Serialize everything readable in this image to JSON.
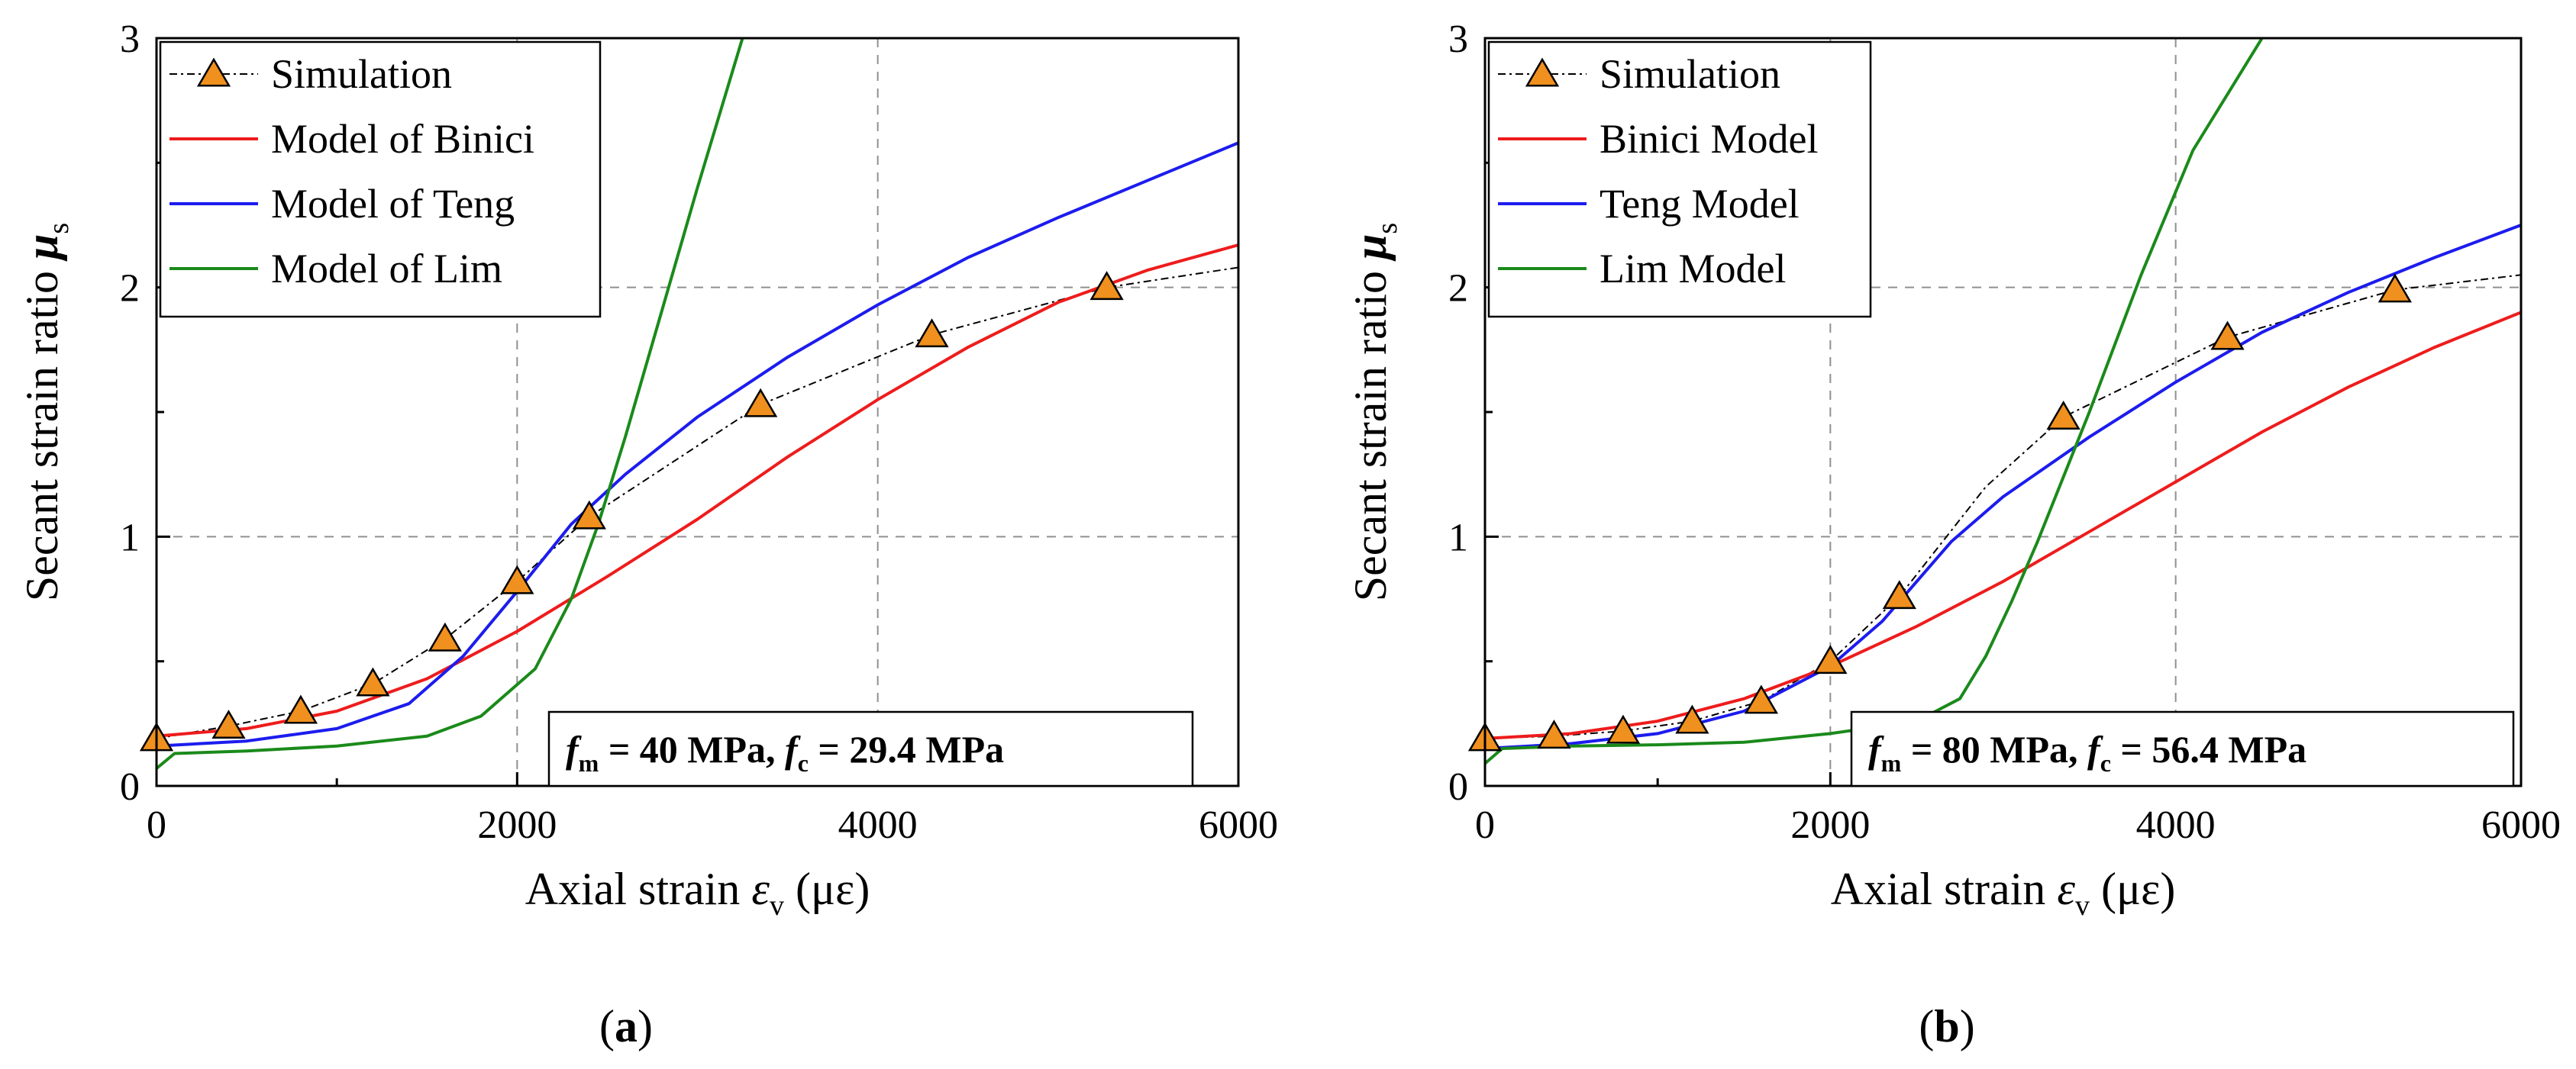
{
  "chart_data": [
    {
      "type": "line",
      "panel_label": "(a)",
      "panel_letter": "a",
      "xlabel": {
        "main": "Axial strain ",
        "sym": "ε",
        "sub": "v",
        "unit": " (με)"
      },
      "ylabel": {
        "main": "Secant strain ratio ",
        "sym": "μ",
        "sub": "s"
      },
      "xlim": [
        0,
        6000
      ],
      "ylim": [
        0,
        3
      ],
      "xticks": [
        0,
        2000,
        4000,
        6000
      ],
      "yticks": [
        0,
        1,
        2,
        3
      ],
      "grid": "dashed",
      "legend_position": "top-left",
      "annotation": {
        "s1": "f",
        "sub1": "m",
        "t1": " = 40 MPa, ",
        "s2": "f",
        "sub2": "c",
        "t2": " = 29.4 MPa"
      },
      "series": [
        {
          "name": "Simulation",
          "color": "#000000",
          "style": "dashdot",
          "marker": "triangle",
          "marker_color": "#f0901e",
          "x": [
            0,
            400,
            800,
            1200,
            1600,
            2000,
            2400,
            3350,
            4300,
            5270,
            6000
          ],
          "y": [
            0.19,
            0.24,
            0.3,
            0.41,
            0.59,
            0.82,
            1.08,
            1.53,
            1.81,
            2.0,
            2.08
          ],
          "marker_x": [
            0,
            400,
            800,
            1200,
            1600,
            2000,
            2400,
            3350,
            4300,
            5270
          ],
          "marker_y": [
            0.19,
            0.24,
            0.3,
            0.41,
            0.59,
            0.82,
            1.08,
            1.53,
            1.81,
            2.0
          ]
        },
        {
          "name": "Model of Binici",
          "color": "#ee1c1c",
          "style": "solid",
          "x": [
            0,
            500,
            1000,
            1500,
            2000,
            2500,
            3000,
            3500,
            4000,
            4500,
            5000,
            5500,
            6000
          ],
          "y": [
            0.2,
            0.23,
            0.3,
            0.43,
            0.62,
            0.84,
            1.07,
            1.32,
            1.55,
            1.76,
            1.94,
            2.07,
            2.17
          ]
        },
        {
          "name": "Model of Teng",
          "color": "#1c1cee",
          "style": "solid",
          "x": [
            0,
            500,
            1000,
            1400,
            1700,
            2000,
            2300,
            2600,
            3000,
            3500,
            4000,
            4500,
            5000,
            5500,
            6000
          ],
          "y": [
            0.16,
            0.18,
            0.23,
            0.33,
            0.52,
            0.78,
            1.05,
            1.25,
            1.48,
            1.72,
            1.93,
            2.12,
            2.28,
            2.43,
            2.58
          ]
        },
        {
          "name": "Model of Lim",
          "color": "#1a8a1a",
          "style": "solid",
          "x": [
            0,
            100,
            500,
            1000,
            1500,
            1800,
            2100,
            2300,
            2450,
            2600,
            2800,
            3000,
            3250
          ],
          "y": [
            0.07,
            0.13,
            0.14,
            0.16,
            0.2,
            0.28,
            0.47,
            0.75,
            1.05,
            1.4,
            1.9,
            2.4,
            3.0
          ]
        }
      ]
    },
    {
      "type": "line",
      "panel_label": "(b)",
      "panel_letter": "b",
      "xlabel": {
        "main": "Axial strain ",
        "sym": "ε",
        "sub": "v",
        "unit": " (με)"
      },
      "ylabel": {
        "main": "Secant strain ratio ",
        "sym": "μ",
        "sub": "s"
      },
      "xlim": [
        0,
        6000
      ],
      "ylim": [
        0,
        3
      ],
      "xticks": [
        0,
        2000,
        4000,
        6000
      ],
      "yticks": [
        0,
        1,
        2,
        3
      ],
      "grid": "dashed",
      "legend_position": "top-left",
      "annotation": {
        "s1": "f",
        "sub1": "m",
        "t1": " = 80 MPa, ",
        "s2": "f",
        "sub2": "c",
        "t2": " = 56.4 MPa"
      },
      "series": [
        {
          "name": "Simulation",
          "color": "#000000",
          "style": "dashdot",
          "marker": "triangle",
          "marker_color": "#f0901e",
          "x": [
            0,
            400,
            800,
            1200,
            1600,
            2000,
            2400,
            2900,
            3350,
            4300,
            5270,
            6000
          ],
          "y": [
            0.19,
            0.2,
            0.22,
            0.26,
            0.34,
            0.5,
            0.76,
            1.2,
            1.48,
            1.8,
            1.99,
            2.05
          ],
          "marker_x": [
            0,
            400,
            800,
            1200,
            1600,
            2000,
            2400,
            3350,
            4300,
            5270
          ],
          "marker_y": [
            0.19,
            0.2,
            0.22,
            0.26,
            0.34,
            0.5,
            0.76,
            1.48,
            1.8,
            1.99
          ]
        },
        {
          "name": "Binici Model",
          "color": "#ee1c1c",
          "style": "solid",
          "x": [
            0,
            500,
            1000,
            1500,
            2000,
            2500,
            3000,
            3500,
            4000,
            4500,
            5000,
            5500,
            6000
          ],
          "y": [
            0.19,
            0.21,
            0.26,
            0.35,
            0.48,
            0.64,
            0.82,
            1.02,
            1.22,
            1.42,
            1.6,
            1.76,
            1.9
          ]
        },
        {
          "name": "Teng Model",
          "color": "#1c1cee",
          "style": "solid",
          "x": [
            0,
            500,
            1000,
            1500,
            2000,
            2300,
            2700,
            3000,
            3500,
            4000,
            4500,
            5000,
            5500,
            6000
          ],
          "y": [
            0.15,
            0.17,
            0.21,
            0.3,
            0.48,
            0.66,
            0.98,
            1.16,
            1.4,
            1.62,
            1.82,
            1.98,
            2.12,
            2.25
          ]
        },
        {
          "name": "Lim Model",
          "color": "#1a8a1a",
          "style": "solid",
          "x": [
            0,
            100,
            500,
            1000,
            1500,
            2000,
            2500,
            2750,
            2900,
            3050,
            3200,
            3500,
            3800,
            4100,
            4500
          ],
          "y": [
            0.09,
            0.15,
            0.16,
            0.165,
            0.175,
            0.21,
            0.26,
            0.35,
            0.52,
            0.74,
            0.98,
            1.5,
            2.05,
            2.55,
            3.0
          ]
        }
      ]
    }
  ]
}
